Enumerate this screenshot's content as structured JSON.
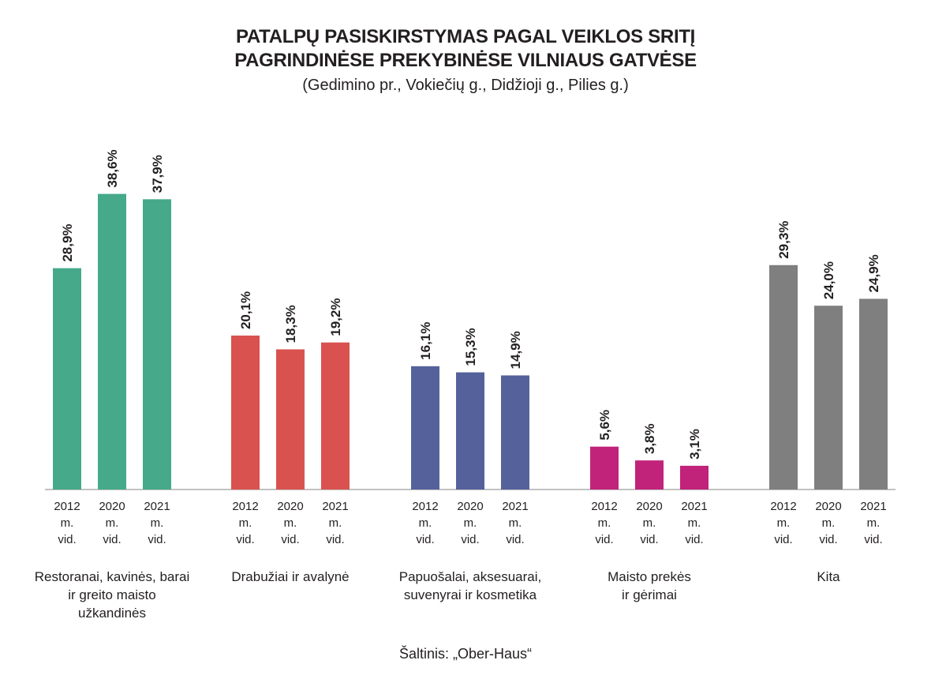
{
  "chart_data": {
    "type": "bar",
    "title_lines": [
      "PATALPŲ PASISKIRSTYMAS PAGAL VEIKLOS SRITĮ",
      "PAGRINDINĖSE PREKYBINĖSE VILNIAUS GATVĖSE"
    ],
    "subtitle": "(Gedimino pr., Vokiečių g., Didžioji g., Pilies g.)",
    "source": "Šaltinis: „Ober-Haus“",
    "period_labels": [
      [
        "2012",
        "m.",
        "vid."
      ],
      [
        "2020",
        "m.",
        "vid."
      ],
      [
        "2021",
        "m.",
        "vid."
      ]
    ],
    "groups": [
      {
        "label_lines": [
          "Restoranai, kavinės, barai",
          "ir greito maisto",
          "užkandinės"
        ],
        "color": "#45a98a",
        "values": [
          28.9,
          38.6,
          37.9
        ],
        "value_labels": [
          "28,9%",
          "38,6%",
          "37,9%"
        ]
      },
      {
        "label_lines": [
          "Drabužiai ir avalynė"
        ],
        "color": "#d9524f",
        "values": [
          20.1,
          18.3,
          19.2
        ],
        "value_labels": [
          "20,1%",
          "18,3%",
          "19,2%"
        ]
      },
      {
        "label_lines": [
          "Papuošalai, aksesuarai,",
          "suvenyrai ir kosmetika"
        ],
        "color": "#55619a",
        "values": [
          16.1,
          15.3,
          14.9
        ],
        "value_labels": [
          "16,1%",
          "15,3%",
          "14,9%"
        ]
      },
      {
        "label_lines": [
          "Maisto prekės",
          "ir gėrimai"
        ],
        "color": "#c1237a",
        "values": [
          5.6,
          3.8,
          3.1
        ],
        "value_labels": [
          "5,6%",
          "3,8%",
          "3,1%"
        ]
      },
      {
        "label_lines": [
          "Kita"
        ],
        "color": "#7f7f7f",
        "values": [
          29.3,
          24.0,
          24.9
        ],
        "value_labels": [
          "29,3%",
          "24,0%",
          "24,9%"
        ]
      }
    ],
    "ylim": [
      0,
      40
    ],
    "grid": false,
    "legend": "none"
  }
}
